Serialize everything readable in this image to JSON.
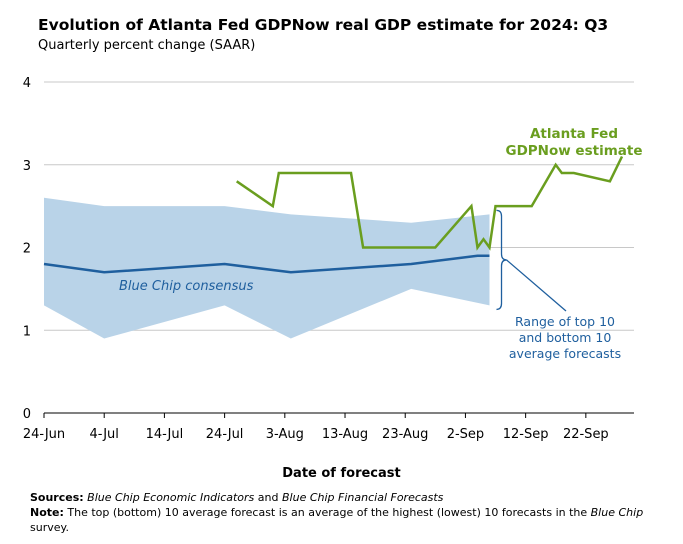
{
  "chart_data": {
    "type": "line",
    "title": "Evolution of Atlanta Fed GDPNow real GDP estimate for 2024: Q3",
    "subtitle": "Quarterly percent change (SAAR)",
    "xlabel": "Date of forecast",
    "ylabel": "",
    "ylim": [
      0,
      4
    ],
    "yticks": [
      "0",
      "1",
      "2",
      "3",
      "4"
    ],
    "xlim": [
      "2024-06-24",
      "2024-09-30"
    ],
    "xticks": [
      {
        "date": "2024-06-24",
        "label": "24-Jun"
      },
      {
        "date": "2024-07-04",
        "label": "4-Jul"
      },
      {
        "date": "2024-07-14",
        "label": "14-Jul"
      },
      {
        "date": "2024-07-24",
        "label": "24-Jul"
      },
      {
        "date": "2024-08-03",
        "label": "3-Aug"
      },
      {
        "date": "2024-08-13",
        "label": "13-Aug"
      },
      {
        "date": "2024-08-23",
        "label": "23-Aug"
      },
      {
        "date": "2024-09-02",
        "label": "2-Sep"
      },
      {
        "date": "2024-09-12",
        "label": "12-Sep"
      },
      {
        "date": "2024-09-22",
        "label": "22-Sep"
      }
    ],
    "grid": "horizontal",
    "colors": {
      "gdpnow": "#6a9e1f",
      "consensus": "#1f5f9e",
      "range": "#b9d3e8",
      "grid": "#c8c8c8"
    },
    "series": [
      {
        "name": "Atlanta Fed GDPNow estimate",
        "label_lines": [
          "Atlanta Fed",
          "GDPNow estimate"
        ],
        "x": [
          "2024-07-26",
          "2024-08-01",
          "2024-08-02",
          "2024-08-05",
          "2024-08-08",
          "2024-08-13",
          "2024-08-14",
          "2024-08-16",
          "2024-08-20",
          "2024-08-23",
          "2024-08-26",
          "2024-08-28",
          "2024-09-03",
          "2024-09-04",
          "2024-09-05",
          "2024-09-06",
          "2024-09-07",
          "2024-09-09",
          "2024-09-13",
          "2024-09-17",
          "2024-09-18",
          "2024-09-20",
          "2024-09-26",
          "2024-09-28"
        ],
        "y": [
          2.8,
          2.5,
          2.9,
          2.9,
          2.9,
          2.9,
          2.9,
          2.0,
          2.0,
          2.0,
          2.0,
          2.0,
          2.5,
          2.0,
          2.1,
          2.0,
          2.5,
          2.5,
          2.5,
          3.0,
          2.9,
          2.9,
          2.8,
          3.1
        ]
      },
      {
        "name": "Blue Chip consensus",
        "label_lines": [
          "Blue Chip consensus"
        ],
        "x": [
          "2024-06-24",
          "2024-07-04",
          "2024-07-24",
          "2024-08-04",
          "2024-08-24",
          "2024-09-04",
          "2024-09-06"
        ],
        "y": [
          1.8,
          1.7,
          1.8,
          1.7,
          1.8,
          1.9,
          1.9
        ]
      }
    ],
    "range_band": {
      "name": "Range of top 10 and bottom 10 average forecasts",
      "label_lines": [
        "Range of top 10",
        "and bottom 10",
        "average forecasts"
      ],
      "x": [
        "2024-06-24",
        "2024-07-04",
        "2024-07-24",
        "2024-08-04",
        "2024-08-24",
        "2024-09-06"
      ],
      "upper": [
        2.6,
        2.5,
        2.5,
        2.4,
        2.3,
        2.4
      ],
      "lower": [
        1.3,
        0.9,
        1.3,
        0.9,
        1.5,
        1.3
      ]
    }
  },
  "notes": {
    "sources_label": "Sources:",
    "sources_src1": "Blue Chip Economic Indicators",
    "sources_and": " and ",
    "sources_src2": "Blue Chip Financial Forecasts",
    "note_label": "Note:",
    "note_text": " The top (bottom) 10 average forecast is an average of the highest (lowest) 10 forecasts in the ",
    "note_italic": "Blue Chip",
    "note_end": " survey."
  }
}
